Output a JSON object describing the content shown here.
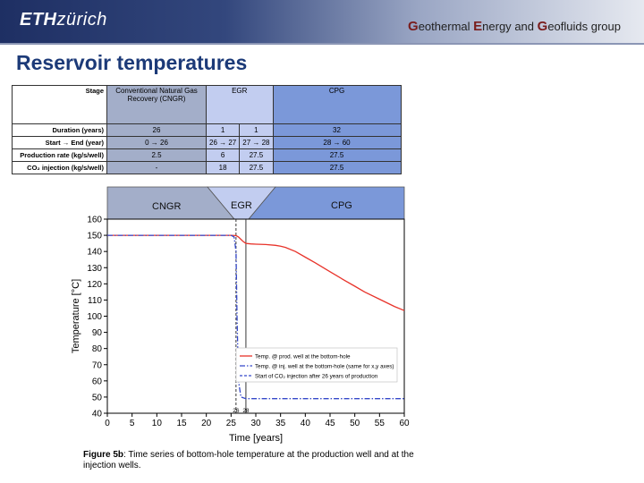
{
  "header": {
    "logo_bold": "ETH",
    "logo_rest": "zürich",
    "group_title": "Geothermal Energy and Geofluids group"
  },
  "slide_title": "Reservoir temperatures",
  "table": {
    "stage_label": "Stage",
    "stage_cngr": "Conventional Natural Gas Recovery (CNGR)",
    "stage_egr": "EGR",
    "stage_cpg": "CPG",
    "rows": [
      {
        "label": "Duration (years)",
        "cngr": "26",
        "egr1": "1",
        "egr2": "1",
        "cpg": "32"
      },
      {
        "label": "Start → End (year)",
        "cngr": "0 → 26",
        "egr1": "26 → 27",
        "egr2": "27 → 28",
        "cpg": "28 → 60"
      },
      {
        "label": "Production rate (kg/s/well)",
        "cngr": "2.5",
        "egr1": "6",
        "egr2": "27.5",
        "cpg": "27.5"
      },
      {
        "label": "CO₂ injection (kg/s/well)",
        "cngr": "-",
        "egr1": "18",
        "egr2": "27.5",
        "cpg": "27.5"
      }
    ]
  },
  "bands": {
    "cngr": "CNGR",
    "egr": "EGR",
    "cpg": "CPG"
  },
  "caption": {
    "bold": "Figure 5b",
    "text": ": Time series of bottom-hole temperature at the production well and at the injection wells."
  },
  "chart_data": {
    "type": "line",
    "xlabel": "Time [years]",
    "ylabel": "Temperature [°C]",
    "xlim": [
      0,
      60
    ],
    "ylim": [
      40,
      160
    ],
    "xticks": [
      0,
      5,
      10,
      15,
      20,
      25,
      30,
      35,
      40,
      45,
      50,
      55,
      60
    ],
    "yticks": [
      40,
      50,
      60,
      70,
      80,
      90,
      100,
      110,
      120,
      130,
      140,
      150,
      160
    ],
    "vlines": [
      {
        "x": 26,
        "label": "26",
        "style": "dashed"
      },
      {
        "x": 28,
        "label": "28",
        "style": "solid"
      }
    ],
    "legend_position": "lower-center",
    "series": [
      {
        "name": "Temp. @ prod. well at the bottom-hole",
        "color": "#e8332a",
        "style": "solid",
        "x": [
          0,
          10,
          20,
          25,
          26,
          26.5,
          27,
          27.5,
          28,
          29,
          30,
          32,
          34,
          35,
          36,
          38,
          40,
          42,
          45,
          48,
          50,
          52,
          55,
          58,
          60
        ],
        "y": [
          150,
          150,
          150,
          150,
          149.8,
          149,
          147.5,
          146,
          145,
          144.7,
          144.5,
          144.3,
          143.8,
          143.3,
          142.5,
          140,
          136.5,
          133,
          127.5,
          122,
          118.5,
          115,
          110.5,
          106,
          103.5
        ]
      },
      {
        "name": "Temp. @ inj. well at the bottom-hole (same for x,y axes)",
        "color": "#3548c9",
        "style": "dashdot",
        "x": [
          0,
          10,
          20,
          25,
          25.6,
          26,
          26.2,
          26.5,
          27,
          28,
          35,
          45,
          60
        ],
        "y": [
          150,
          150,
          150,
          150,
          149,
          140,
          100,
          60,
          50,
          49,
          49,
          49,
          49
        ]
      },
      {
        "name": "Start of CO₂ injection after 26 years of production",
        "color": "#3548c9",
        "style": "dashed",
        "x": [],
        "y": []
      }
    ]
  }
}
